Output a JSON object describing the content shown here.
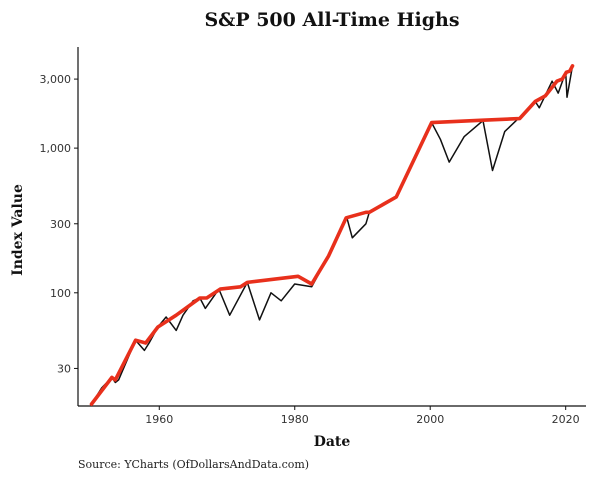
{
  "chart_data": {
    "type": "line",
    "title": "S&P 500 All-Time Highs",
    "xlabel": "Date",
    "ylabel": "Index Value",
    "caption": "Source: YCharts (OfDollarsAndData.com)",
    "y_scale": "log",
    "xlim": [
      1948,
      2023
    ],
    "ylim": [
      16.5,
      5000
    ],
    "x_ticks": [
      1960,
      1980,
      2000,
      2020
    ],
    "x_tick_labels": [
      "1960",
      "1980",
      "2000",
      "2020"
    ],
    "y_ticks": [
      30,
      100,
      300,
      1000,
      3000
    ],
    "y_tick_labels": [
      "30",
      "100",
      "300",
      "1,000",
      "3,000"
    ],
    "grid": false,
    "legend": "none",
    "colors": {
      "price": "#111111",
      "all_time_high": "#e8301c"
    },
    "series": [
      {
        "x": [
          1950,
          1951.5,
          1953,
          1953.5,
          1954,
          1956.5,
          1957.8,
          1958.5,
          1959.8,
          1961,
          1962.5,
          1963.5,
          1965,
          1966,
          1966.8,
          1968.8,
          1970.4,
          1973,
          1974.8,
          1976.5,
          1978,
          1980,
          1982.5,
          1985,
          1987.7,
          1988.5,
          1990.5,
          1991,
          1995,
          2000.2,
          2001.5,
          2002.8,
          2005,
          2007.8,
          2009.2,
          2011,
          2013,
          2015.5,
          2016.1,
          2018,
          2018.9,
          2020,
          2020.2,
          2021
        ],
        "y": [
          17,
          22,
          26,
          24,
          25,
          47,
          40,
          45,
          58,
          68,
          55,
          70,
          88,
          92,
          78,
          106,
          70,
          118,
          65,
          100,
          88,
          115,
          110,
          180,
          330,
          240,
          300,
          360,
          460,
          1500,
          1150,
          800,
          1200,
          1550,
          700,
          1300,
          1600,
          2100,
          1900,
          2900,
          2400,
          3350,
          2250,
          3700
        ]
      },
      {
        "x": [
          1950,
          1953,
          1953.5,
          1956.5,
          1958,
          1959.8,
          1962.5,
          1966,
          1967,
          1969,
          1972,
          1973,
          1980.5,
          1982.5,
          1985,
          1987.6,
          1990.5,
          1991,
          1995,
          2000.2,
          2007.8,
          2013.2,
          2015.5,
          2017,
          2018.7,
          2019.5,
          2020.1,
          2020.6,
          2021
        ],
        "y": [
          17,
          26,
          25,
          47,
          45,
          58,
          70,
          92,
          92,
          106,
          110,
          118,
          130,
          115,
          180,
          330,
          360,
          360,
          460,
          1500,
          1560,
          1600,
          2100,
          2300,
          2900,
          3000,
          3350,
          3400,
          3700
        ]
      }
    ]
  }
}
